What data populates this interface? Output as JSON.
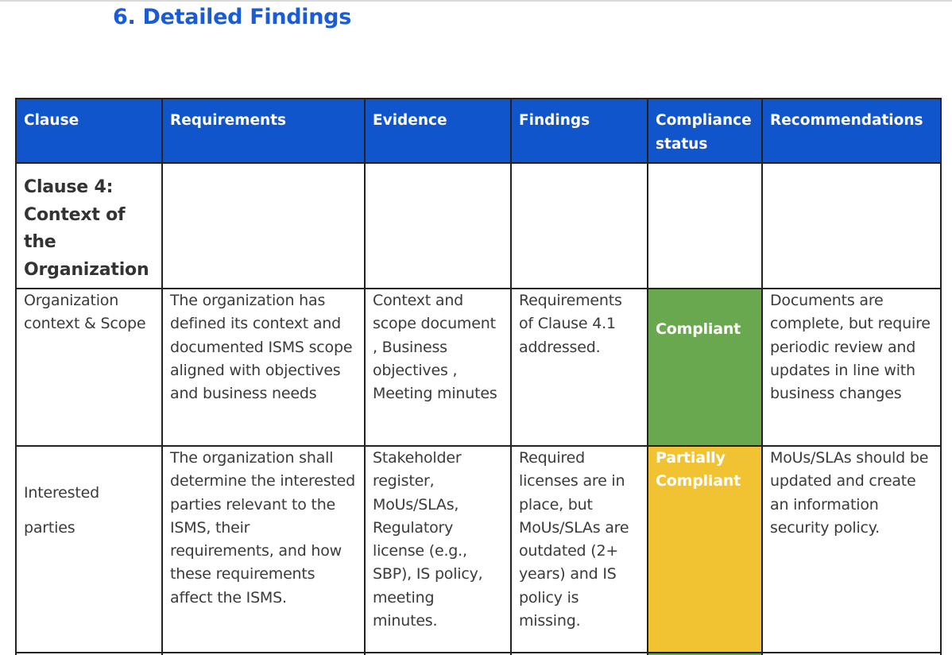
{
  "heading": "6. Detailed Findings",
  "table": {
    "headers": [
      "Clause",
      "Requirements",
      "Evidence",
      "Findings",
      "Compliance status",
      "Recommendations"
    ],
    "section_title": "Clause 4: Context of the Organization",
    "rows": [
      {
        "clause": "Organization context & Scope",
        "requirements": "The organization has defined its context and documented ISMS scope aligned with objectives and business needs",
        "evidence": "Context and scope document , Business objectives , Meeting minutes",
        "findings": "Requirements of Clause 4.1 addressed.",
        "status": "Compliant",
        "recommendations": "Documents are complete, but require periodic review and updates in line with business changes"
      },
      {
        "clause": "Interested parties",
        "requirements": "The organization shall determine the interested parties relevant to the ISMS, their requirements, and how these requirements affect the ISMS.",
        "evidence": "Stakeholder register, MoUs/SLAs, Regulatory license (e.g., SBP), IS policy, meeting minutes.",
        "findings": "Required licenses are in place, but MoUs/SLAs are outdated (2+ years) and IS policy is missing.",
        "status": "Partially Compliant",
        "recommendations": "MoUs/SLAs should be updated and create an information security policy."
      }
    ]
  },
  "colors": {
    "heading": "#1a5bd6",
    "header_bg": "#1155cc",
    "compliant": "#6aa84f",
    "partial": "#f1c232"
  }
}
